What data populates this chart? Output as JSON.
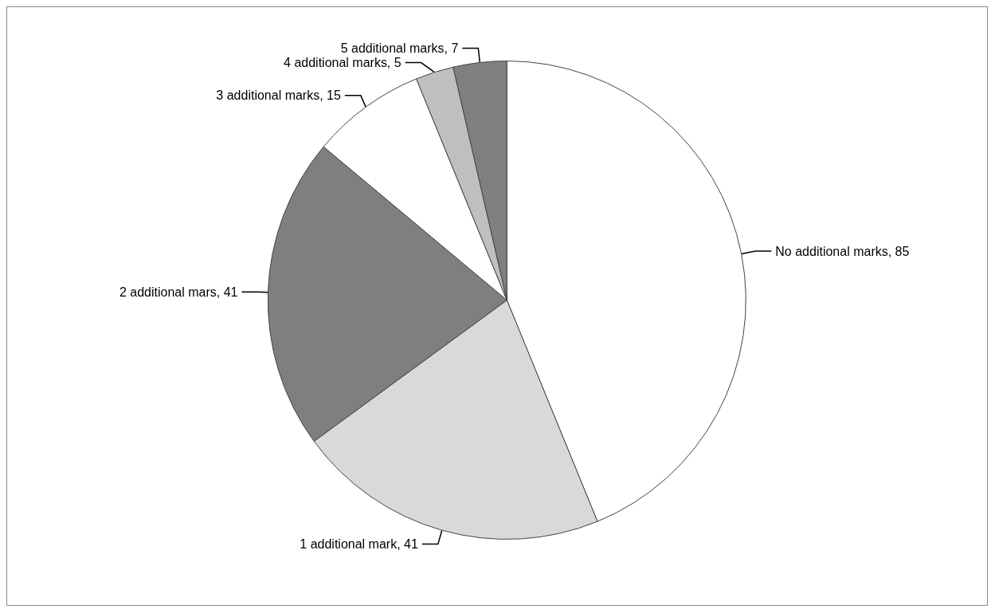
{
  "chart_data": {
    "type": "pie",
    "categories": [
      "No additional marks",
      "1 additional mark",
      "2 additional mars",
      "3 additional marks",
      "4 additional marks",
      "5 additional marks"
    ],
    "values": [
      85,
      41,
      41,
      15,
      5,
      7
    ],
    "colors": [
      "#ffffff",
      "#d9d9d9",
      "#7f7f7f",
      "#ffffff",
      "#bfbfbf",
      "#7f7f7f"
    ],
    "value_labels": [
      ", 85",
      ", 41",
      ", 41",
      ", 15",
      ", 5",
      ", 7"
    ]
  }
}
